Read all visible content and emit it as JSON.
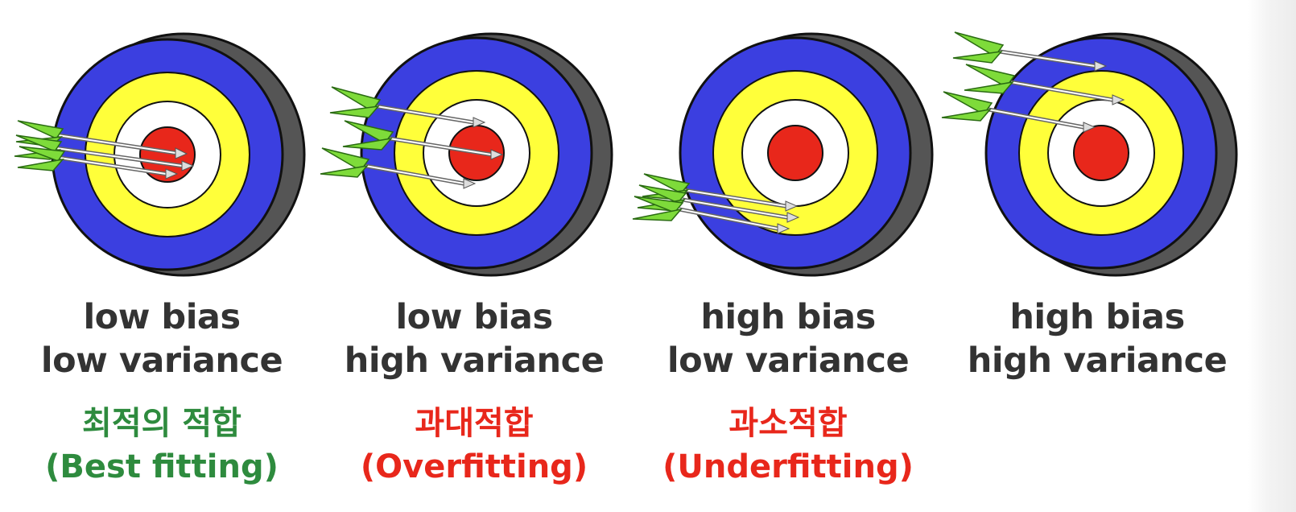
{
  "colors": {
    "ring_blue": "#3b3fe0",
    "ring_yellow": "#ffff3a",
    "ring_white": "#ffffff",
    "bullseye": "#e8271b",
    "rim": "#555555",
    "fletching": "#7edb3a",
    "caption": "#333333",
    "best_fit": "#2e8b3e",
    "misfit": "#e8271b"
  },
  "icons": [
    "archery-target-icon",
    "arrow-icon"
  ],
  "panels": [
    {
      "bias": "low bias",
      "variance": "low variance",
      "korean": "최적의 적합",
      "english": "(Best fitting)",
      "label_color": "#2e8b3e"
    },
    {
      "bias": "low bias",
      "variance": "high variance",
      "korean": "과대적합",
      "english": "(Overfitting)",
      "label_color": "#e8271b"
    },
    {
      "bias": "high bias",
      "variance": "low variance",
      "korean": "과소적합",
      "english": "(Underfitting)",
      "label_color": "#e8271b"
    },
    {
      "bias": "high bias",
      "variance": "high variance",
      "korean": "",
      "english": "",
      "label_color": "#e8271b"
    }
  ]
}
